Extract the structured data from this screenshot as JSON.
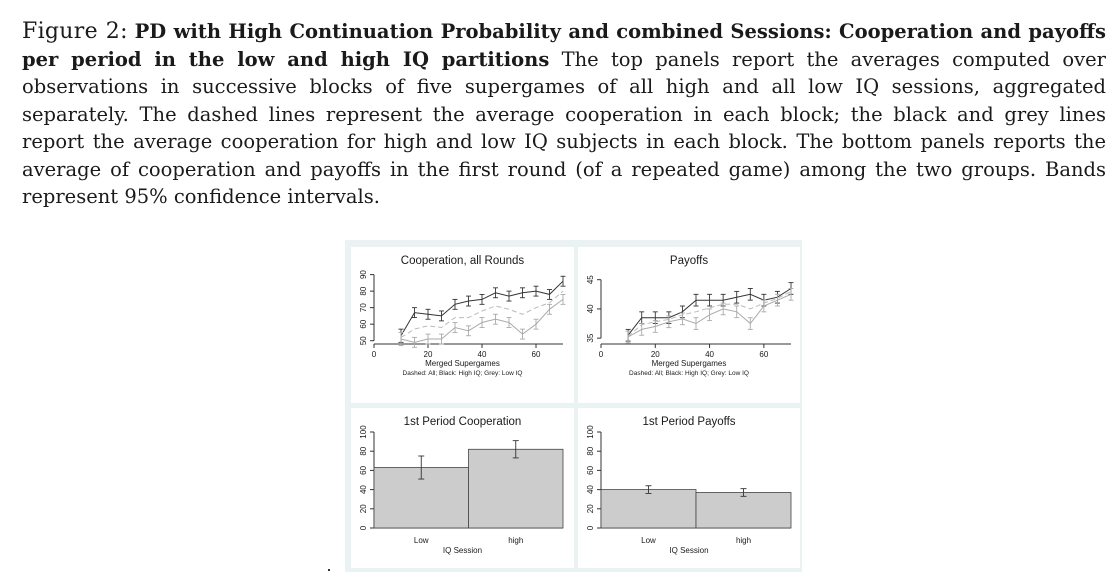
{
  "caption": {
    "label": "Figure 2:",
    "title": "PD with High Continuation Probability and combined Sessions: Cooperation and payoffs per period in the low and high IQ partitions",
    "body": "The top panels report the averages computed over observations in successive blocks of five supergames of all high and all low IQ sessions, aggregated separately. The dashed lines represent the average cooperation in each block; the black and grey lines report the average cooperation for high and low IQ subjects in each block. The bottom panels reports the average of cooperation and payoffs in the first round (of a repeated game) among the two groups. Bands represent 95% confidence intervals."
  },
  "colors": {
    "high": "#333333",
    "low": "#aaaaaa",
    "dashed": "#bbbbbb",
    "bar_fill": "#cccccc",
    "panel_bg": "#eaf2f3"
  },
  "chart_data": [
    {
      "id": "coop",
      "type": "line",
      "title": "Cooperation, all Rounds",
      "xlabel": "Merged Supergames",
      "note": "Dashed: All; Black: High IQ; Grey: Low IQ",
      "xlim": [
        0,
        70
      ],
      "ylim": [
        48,
        94
      ],
      "xticks": [
        0,
        20,
        40,
        60
      ],
      "yticks": [
        50,
        60,
        70,
        80,
        90
      ],
      "x": [
        10,
        15,
        20,
        25,
        30,
        35,
        40,
        45,
        50,
        55,
        60,
        65,
        70
      ],
      "series": [
        {
          "name": "High IQ",
          "style": "solid-black",
          "values": [
            53,
            67,
            66,
            65,
            72,
            74,
            75,
            79,
            77,
            79,
            80,
            78,
            86
          ],
          "ci": [
            4,
            3,
            3,
            3,
            3,
            3,
            3,
            3,
            3,
            3,
            3,
            3,
            3
          ]
        },
        {
          "name": "Low IQ",
          "style": "solid-grey",
          "values": [
            51,
            49,
            51,
            51,
            58,
            56,
            61,
            63,
            61,
            54,
            60,
            69,
            75
          ],
          "ci": [
            4,
            3,
            3,
            3,
            3,
            3,
            3,
            3,
            3,
            3,
            3,
            3,
            3
          ]
        },
        {
          "name": "All",
          "style": "dashed",
          "values": [
            52,
            57,
            59,
            58,
            64,
            64,
            68,
            71,
            69,
            66,
            70,
            73,
            80
          ],
          "ci": []
        }
      ]
    },
    {
      "id": "pay",
      "type": "line",
      "title": "Payoffs",
      "xlabel": "Merged Supergames",
      "note": "Dashed: All; Black: High IQ; Grey: Low IQ",
      "xlim": [
        0,
        70
      ],
      "ylim": [
        34,
        47
      ],
      "xticks": [
        0,
        20,
        40,
        60
      ],
      "yticks": [
        35,
        40,
        45
      ],
      "x": [
        10,
        15,
        20,
        25,
        30,
        35,
        40,
        45,
        50,
        55,
        60,
        65,
        70
      ],
      "series": [
        {
          "name": "High IQ",
          "style": "solid-black",
          "values": [
            35.5,
            38.5,
            38.5,
            38.5,
            39.5,
            41.5,
            41.5,
            41.5,
            42,
            42.5,
            41.5,
            42,
            43.5
          ],
          "ci": [
            1,
            1,
            1,
            1,
            1,
            1,
            1,
            1,
            1,
            1,
            1,
            1,
            1
          ]
        },
        {
          "name": "Low IQ",
          "style": "solid-grey",
          "values": [
            35.2,
            36.5,
            37,
            37.8,
            38.3,
            37.5,
            39,
            40,
            39.5,
            37.5,
            40.5,
            41.5,
            42.5
          ],
          "ci": [
            1,
            1,
            1,
            1,
            1,
            1,
            1,
            1,
            1,
            1,
            1,
            1,
            1
          ]
        },
        {
          "name": "All",
          "style": "dashed",
          "values": [
            35.3,
            37.3,
            37.8,
            38.2,
            39,
            39.5,
            40.2,
            40.8,
            40.8,
            40,
            41,
            41.8,
            43
          ],
          "ci": []
        }
      ]
    },
    {
      "id": "fpcoop",
      "type": "bar",
      "title": "1st Period Cooperation",
      "xlabel": "IQ Session",
      "categories": [
        "Low",
        "high"
      ],
      "values": [
        63,
        82
      ],
      "ci": [
        12,
        9
      ],
      "ylim": [
        0,
        100
      ],
      "yticks": [
        0,
        20,
        40,
        60,
        80,
        100
      ]
    },
    {
      "id": "fppay",
      "type": "bar",
      "title": "1st Period Payoffs",
      "xlabel": "IQ Session",
      "categories": [
        "Low",
        "high"
      ],
      "values": [
        40,
        37
      ],
      "ci": [
        4,
        4
      ],
      "ylim": [
        0,
        100
      ],
      "yticks": [
        0,
        20,
        40,
        60,
        80,
        100
      ]
    }
  ]
}
